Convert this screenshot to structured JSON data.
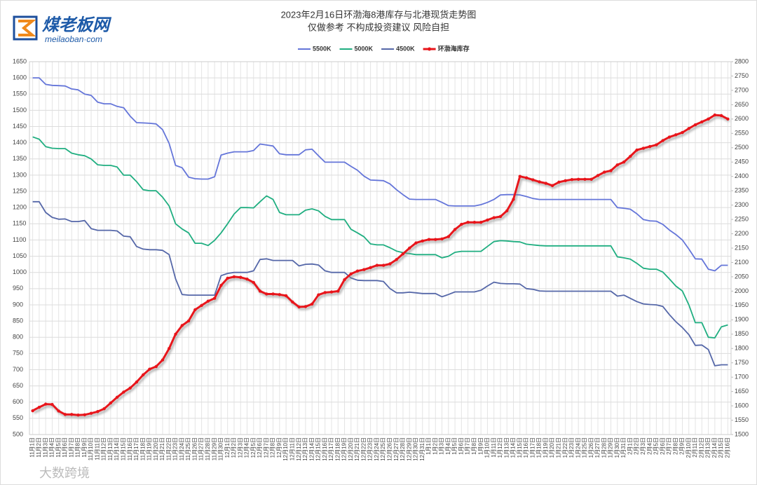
{
  "logo_title": "煤老板网",
  "logo_url": "meilaoban·com",
  "watermark": "大数跨境",
  "chart_data": {
    "type": "line",
    "title": "2023年2月16日环渤海8港库存与北港现货走势图",
    "subtitle": "仅做参考 不构成投资建议 风险自担",
    "categories": [
      "11月1日",
      "11月2日",
      "11月3日",
      "11月4日",
      "11月5日",
      "11月6日",
      "11月7日",
      "11月8日",
      "11月9日",
      "11月10日",
      "11月11日",
      "11月12日",
      "11月13日",
      "11月14日",
      "11月15日",
      "11月16日",
      "11月17日",
      "11月18日",
      "11月19日",
      "11月20日",
      "11月21日",
      "11月22日",
      "11月23日",
      "11月24日",
      "11月25日",
      "11月26日",
      "11月27日",
      "11月28日",
      "11月29日",
      "11月30日",
      "12月1日",
      "12月2日",
      "12月3日",
      "12月4日",
      "12月5日",
      "12月6日",
      "12月7日",
      "12月8日",
      "12月9日",
      "12月10日",
      "12月11日",
      "12月12日",
      "12月13日",
      "12月14日",
      "12月15日",
      "12月16日",
      "12月17日",
      "12月18日",
      "12月19日",
      "12月20日",
      "12月21日",
      "12月22日",
      "12月23日",
      "12月24日",
      "12月25日",
      "12月26日",
      "12月27日",
      "12月28日",
      "12月29日",
      "12月30日",
      "12月31日",
      "1月1日",
      "1月2日",
      "1月3日",
      "1月4日",
      "1月5日",
      "1月6日",
      "1月7日",
      "1月8日",
      "1月9日",
      "1月10日",
      "1月11日",
      "1月12日",
      "1月13日",
      "1月14日",
      "1月15日",
      "1月16日",
      "1月17日",
      "1月18日",
      "1月19日",
      "1月20日",
      "1月21日",
      "1月22日",
      "1月23日",
      "1月24日",
      "1月25日",
      "1月26日",
      "1月27日",
      "1月28日",
      "1月29日",
      "1月30日",
      "1月31日",
      "2月1日",
      "2月2日",
      "2月3日",
      "2月4日",
      "2月5日",
      "2月6日",
      "2月7日",
      "2月8日",
      "2月9日",
      "2月10日",
      "2月11日",
      "2月12日",
      "2月13日",
      "2月14日",
      "2月15日",
      "2月16日"
    ],
    "series": [
      {
        "name": "5500K",
        "color": "#6475d9",
        "values": [
          1600,
          1600,
          1580,
          1577,
          1576,
          1575,
          1566,
          1563,
          1550,
          1546,
          1525,
          1520,
          1520,
          1512,
          1508,
          1482,
          1462,
          1461,
          1460,
          1458,
          1440,
          1398,
          1330,
          1323,
          1294,
          1289,
          1288,
          1288,
          1295,
          1362,
          1368,
          1372,
          1372,
          1372,
          1376,
          1396,
          1393,
          1390,
          1366,
          1363,
          1363,
          1363,
          1378,
          1380,
          1360,
          1340,
          1340,
          1340,
          1340,
          1327,
          1315,
          1297,
          1285,
          1284,
          1283,
          1273,
          1255,
          1240,
          1226,
          1225,
          1225,
          1225,
          1225,
          1216,
          1206,
          1205,
          1205,
          1205,
          1205,
          1209,
          1216,
          1225,
          1239,
          1240,
          1240,
          1239,
          1234,
          1228,
          1225,
          1225,
          1225,
          1225,
          1225,
          1225,
          1225,
          1225,
          1225,
          1225,
          1225,
          1225,
          1200,
          1198,
          1195,
          1181,
          1163,
          1159,
          1158,
          1148,
          1131,
          1117,
          1100,
          1072,
          1042,
          1041,
          1010,
          1005,
          1022,
          1022
        ]
      },
      {
        "name": "5000K",
        "color": "#1fae80",
        "values": [
          1418,
          1411,
          1388,
          1383,
          1382,
          1382,
          1368,
          1363,
          1360,
          1350,
          1332,
          1330,
          1330,
          1325,
          1300,
          1300,
          1280,
          1255,
          1252,
          1252,
          1232,
          1205,
          1150,
          1134,
          1122,
          1090,
          1090,
          1083,
          1099,
          1122,
          1150,
          1180,
          1200,
          1200,
          1199,
          1218,
          1236,
          1225,
          1185,
          1178,
          1178,
          1178,
          1192,
          1196,
          1190,
          1173,
          1163,
          1163,
          1163,
          1133,
          1122,
          1110,
          1088,
          1085,
          1085,
          1076,
          1066,
          1061,
          1058,
          1055,
          1055,
          1055,
          1055,
          1045,
          1050,
          1062,
          1065,
          1065,
          1065,
          1065,
          1080,
          1095,
          1098,
          1097,
          1095,
          1094,
          1087,
          1085,
          1083,
          1082,
          1082,
          1082,
          1082,
          1082,
          1082,
          1082,
          1082,
          1082,
          1082,
          1082,
          1048,
          1045,
          1041,
          1028,
          1013,
          1010,
          1010,
          1001,
          980,
          958,
          943,
          900,
          845,
          845,
          800,
          798,
          832,
          838
        ]
      },
      {
        "name": "4500K",
        "color": "#5567a8",
        "values": [
          1218,
          1218,
          1185,
          1170,
          1164,
          1165,
          1157,
          1157,
          1160,
          1135,
          1130,
          1130,
          1130,
          1128,
          1112,
          1110,
          1080,
          1072,
          1070,
          1070,
          1068,
          1055,
          980,
          932,
          930,
          930,
          930,
          930,
          930,
          990,
          997,
          1000,
          1000,
          1000,
          1005,
          1040,
          1042,
          1037,
          1037,
          1037,
          1037,
          1020,
          1025,
          1026,
          1023,
          1005,
          1000,
          1000,
          1000,
          983,
          976,
          975,
          975,
          975,
          972,
          950,
          937,
          937,
          939,
          937,
          935,
          935,
          935,
          925,
          932,
          940,
          940,
          940,
          940,
          945,
          958,
          970,
          966,
          965,
          965,
          964,
          950,
          948,
          943,
          942,
          942,
          942,
          942,
          942,
          942,
          942,
          942,
          942,
          942,
          942,
          927,
          930,
          920,
          910,
          903,
          901,
          900,
          895,
          870,
          848,
          830,
          808,
          775,
          776,
          762,
          712,
          715,
          715
        ]
      },
      {
        "name": "环渤海库存",
        "color": "#e8141a",
        "axis": "y2",
        "markers": true,
        "values": [
          1583,
          1595,
          1606,
          1605,
          1582,
          1570,
          1570,
          1568,
          1569,
          1574,
          1580,
          1590,
          1610,
          1630,
          1648,
          1662,
          1683,
          1708,
          1728,
          1737,
          1760,
          1800,
          1850,
          1880,
          1896,
          1935,
          1950,
          1965,
          1975,
          2020,
          2045,
          2050,
          2048,
          2042,
          2030,
          2000,
          1990,
          1990,
          1988,
          1984,
          1962,
          1945,
          1946,
          1955,
          1987,
          1995,
          1997,
          2000,
          2040,
          2060,
          2070,
          2075,
          2082,
          2090,
          2090,
          2095,
          2110,
          2130,
          2150,
          2168,
          2175,
          2180,
          2180,
          2182,
          2190,
          2215,
          2233,
          2240,
          2240,
          2240,
          2248,
          2256,
          2260,
          2280,
          2320,
          2400,
          2395,
          2388,
          2381,
          2376,
          2368,
          2380,
          2385,
          2389,
          2390,
          2390,
          2390,
          2403,
          2415,
          2420,
          2440,
          2450,
          2470,
          2492,
          2498,
          2504,
          2510,
          2525,
          2537,
          2545,
          2553,
          2567,
          2580,
          2590,
          2600,
          2614,
          2612,
          2600
        ]
      }
    ],
    "ylim": [
      500,
      1650
    ],
    "yticks": [
      500,
      550,
      600,
      650,
      700,
      750,
      800,
      850,
      900,
      950,
      1000,
      1050,
      1100,
      1150,
      1200,
      1250,
      1300,
      1350,
      1400,
      1450,
      1500,
      1550,
      1600,
      1650
    ],
    "y2lim": [
      1500,
      2800
    ],
    "y2ticks": [
      1500,
      1550,
      1600,
      1650,
      1700,
      1750,
      1800,
      1850,
      1900,
      1950,
      2000,
      2050,
      2100,
      2150,
      2200,
      2250,
      2300,
      2350,
      2400,
      2450,
      2500,
      2550,
      2600,
      2650,
      2700,
      2750,
      2800
    ],
    "grid": true,
    "legend": "top"
  }
}
